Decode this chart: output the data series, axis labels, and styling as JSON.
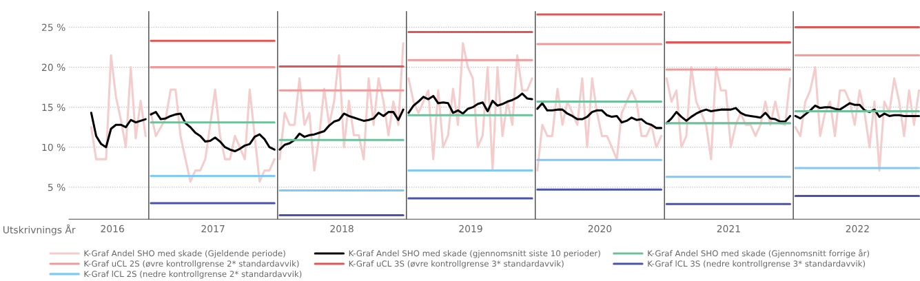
{
  "chart_data": {
    "type": "line",
    "xlabel": "Utskrivnings År",
    "x": [
      "2016-07-22",
      "2016-08-05",
      "2016-08-19",
      "2016-09-02",
      "2016-09-16",
      "2016-09-30",
      "2016-10-14",
      "2016-10-28",
      "2016-11-11",
      "2016-11-25",
      "2016-12-09",
      "2016-12-23",
      "2017-01-01",
      "2017-01-07",
      "2017-01-21",
      "2017-02-04",
      "2017-02-18",
      "2017-03-04",
      "2017-03-18",
      "2017-04-01",
      "2017-04-15",
      "2017-04-29",
      "2017-05-13",
      "2017-05-27",
      "2017-06-10",
      "2017-06-24",
      "2017-07-08",
      "2017-07-22",
      "2017-08-05",
      "2017-08-19",
      "2017-09-02",
      "2017-09-16",
      "2017-09-30",
      "2017-10-14",
      "2017-10-28",
      "2017-11-11",
      "2017-11-25",
      "2017-12-09",
      "2017-12-23",
      "2018-01-01",
      "2018-01-07",
      "2018-01-21",
      "2018-02-04",
      "2018-02-18",
      "2018-03-04",
      "2018-03-18",
      "2018-04-01",
      "2018-04-15",
      "2018-04-29",
      "2018-05-13",
      "2018-05-27",
      "2018-06-10",
      "2018-06-24",
      "2018-07-08",
      "2018-07-22",
      "2018-08-05",
      "2018-08-19",
      "2018-09-02",
      "2018-09-16",
      "2018-09-30",
      "2018-10-14",
      "2018-10-28",
      "2018-11-11",
      "2018-11-25",
      "2018-12-09",
      "2018-12-23",
      "2019-01-01",
      "2019-01-07",
      "2019-01-21",
      "2019-02-04",
      "2019-02-18",
      "2019-03-04",
      "2019-03-18",
      "2019-04-01",
      "2019-04-15",
      "2019-04-29",
      "2019-05-13",
      "2019-05-27",
      "2019-06-10",
      "2019-06-24",
      "2019-07-08",
      "2019-07-22",
      "2019-08-05",
      "2019-08-19",
      "2019-09-02",
      "2019-09-16",
      "2019-09-30",
      "2019-10-14",
      "2019-10-28",
      "2019-11-11",
      "2019-11-25",
      "2019-12-09",
      "2019-12-23",
      "2020-01-01",
      "2020-01-07",
      "2020-01-21",
      "2020-02-04",
      "2020-02-18",
      "2020-03-04",
      "2020-03-18",
      "2020-04-01",
      "2020-04-15",
      "2020-04-29",
      "2020-05-13",
      "2020-05-27",
      "2020-06-10",
      "2020-06-24",
      "2020-07-08",
      "2020-07-22",
      "2020-08-05",
      "2020-08-19",
      "2020-09-02",
      "2020-09-16",
      "2020-09-30",
      "2020-10-14",
      "2020-10-28",
      "2020-11-11",
      "2020-11-25",
      "2020-12-09",
      "2020-12-23",
      "2021-01-01",
      "2021-01-07",
      "2021-01-21",
      "2021-02-04",
      "2021-02-18",
      "2021-03-04",
      "2021-03-18",
      "2021-04-01",
      "2021-04-15",
      "2021-04-29",
      "2021-05-13",
      "2021-05-27",
      "2021-06-10",
      "2021-06-24",
      "2021-07-08",
      "2021-07-22",
      "2021-08-05",
      "2021-08-19",
      "2021-09-02",
      "2021-09-16",
      "2021-09-30",
      "2021-10-14",
      "2021-10-28",
      "2021-11-11",
      "2021-11-25",
      "2021-12-09",
      "2021-12-23",
      "2022-01-01",
      "2022-01-07",
      "2022-01-21",
      "2022-02-04",
      "2022-02-18",
      "2022-03-04",
      "2022-03-18",
      "2022-04-01",
      "2022-04-15",
      "2022-04-29",
      "2022-05-13",
      "2022-05-27",
      "2022-06-10",
      "2022-06-24",
      "2022-07-08",
      "2022-07-22",
      "2022-08-05",
      "2022-08-19",
      "2022-09-02",
      "2022-09-16",
      "2022-09-30",
      "2022-10-14",
      "2022-10-28",
      "2022-11-11",
      "2022-11-25",
      "2022-12-09",
      "2022-12-23"
    ],
    "xlim": [
      "2016-05-20",
      "2022-12-26"
    ],
    "xticks": [
      {
        "value": "2016-09-20",
        "label": "2016"
      },
      {
        "value": "2017-07-02",
        "label": "2017"
      },
      {
        "value": "2018-07-02",
        "label": "2018"
      },
      {
        "value": "2019-07-02",
        "label": "2019"
      },
      {
        "value": "2020-07-02",
        "label": "2020"
      },
      {
        "value": "2021-07-02",
        "label": "2021"
      },
      {
        "value": "2022-07-02",
        "label": "2022"
      }
    ],
    "ylim": [
      1,
      27
    ],
    "yticks": [
      {
        "value": 5,
        "label": "5 %"
      },
      {
        "value": 10,
        "label": "10 %"
      },
      {
        "value": 15,
        "label": "15 %"
      },
      {
        "value": 20,
        "label": "20 %"
      },
      {
        "value": 25,
        "label": "25 %"
      }
    ],
    "grid": "y",
    "legend": "bottom",
    "ref_lines": [
      {
        "axis": "x",
        "value": "2017-01-01",
        "color": "#444444"
      },
      {
        "axis": "x",
        "value": "2018-01-01",
        "color": "#444444"
      },
      {
        "axis": "x",
        "value": "2019-01-01",
        "color": "#444444"
      },
      {
        "axis": "x",
        "value": "2020-01-01",
        "color": "#444444"
      },
      {
        "axis": "x",
        "value": "2021-01-01",
        "color": "#444444"
      },
      {
        "axis": "x",
        "value": "2022-01-01",
        "color": "#444444"
      }
    ],
    "series": [
      {
        "name": "K-Graf Andel SHO med skade (Gjeldende periode)",
        "color": "#f4cccc",
        "values": [
          12.5,
          8.5,
          8.5,
          8.5,
          21.5,
          16.3,
          13.4,
          10.0,
          20.0,
          11.1,
          15.8,
          11.4,
          null,
          14.3,
          11.4,
          12.5,
          13.6,
          17.2,
          17.2,
          11.4,
          8.5,
          5.7,
          7.1,
          7.1,
          8.5,
          12.8,
          17.2,
          11.4,
          8.5,
          8.5,
          11.4,
          10.0,
          8.5,
          17.2,
          11.4,
          5.7,
          7.1,
          7.1,
          8.5,
          null,
          8.5,
          14.3,
          12.8,
          12.8,
          18.6,
          12.8,
          14.3,
          7.1,
          11.4,
          17.3,
          12.8,
          15.7,
          21.5,
          10.0,
          15.8,
          11.5,
          11.5,
          8.5,
          18.6,
          12.8,
          18.6,
          15.7,
          11.5,
          15.7,
          12.8,
          23.0,
          null,
          18.6,
          15.7,
          14.3,
          15.7,
          17.1,
          8.5,
          17.1,
          10.0,
          11.5,
          17.3,
          12.8,
          23.0,
          20.0,
          18.6,
          10.0,
          11.5,
          20.0,
          7.1,
          20.0,
          11.4,
          15.7,
          12.8,
          21.5,
          17.1,
          17.1,
          18.6,
          null,
          7.1,
          12.8,
          11.4,
          11.4,
          17.3,
          12.8,
          15.7,
          14.3,
          12.8,
          18.6,
          10.0,
          18.6,
          14.3,
          11.4,
          11.4,
          10.0,
          8.5,
          14.3,
          15.7,
          17.1,
          15.7,
          11.4,
          11.4,
          12.8,
          10.0,
          11.4,
          null,
          18.6,
          15.7,
          17.1,
          10.0,
          11.4,
          20.0,
          15.7,
          14.3,
          12.8,
          8.5,
          20.0,
          17.1,
          17.1,
          10.0,
          12.8,
          14.3,
          12.8,
          12.8,
          11.4,
          12.8,
          15.7,
          12.8,
          15.7,
          13.0,
          12.8,
          18.6,
          null,
          12.5,
          11.4,
          15.7,
          17.1,
          20.0,
          11.4,
          14.3,
          15.7,
          11.4,
          17.1,
          17.1,
          15.7,
          12.8,
          17.1,
          14.3,
          10.0,
          15.7,
          7.1,
          15.7,
          14.3,
          18.6,
          15.7,
          11.4,
          17.1,
          12.8,
          17.1
        ]
      },
      {
        "name": "K-Graf Andel SHO med skade (gjennomsnitt siste 10 perioder)",
        "color": "#000000",
        "values": [
          14.3,
          11.4,
          10.4,
          10.0,
          12.3,
          12.8,
          12.8,
          12.5,
          13.4,
          13.1,
          13.3,
          13.5,
          null,
          14.1,
          14.4,
          13.5,
          13.6,
          13.9,
          14.1,
          14.2,
          13.0,
          12.5,
          11.8,
          11.4,
          10.7,
          10.8,
          11.2,
          10.7,
          10.0,
          9.7,
          9.5,
          9.8,
          10.2,
          10.4,
          11.3,
          11.6,
          11.0,
          10.0,
          9.7,
          null,
          9.7,
          10.3,
          10.5,
          10.9,
          11.7,
          11.3,
          11.5,
          11.6,
          11.8,
          12.0,
          12.7,
          13.2,
          13.4,
          14.2,
          13.9,
          13.7,
          13.5,
          13.3,
          13.4,
          13.6,
          14.3,
          13.9,
          14.4,
          14.4,
          13.4,
          14.7,
          null,
          14.3,
          15.2,
          15.7,
          16.3,
          16.0,
          16.4,
          15.5,
          15.6,
          15.5,
          14.3,
          14.6,
          14.2,
          14.8,
          15.0,
          15.4,
          15.6,
          14.5,
          15.8,
          15.2,
          15.4,
          15.7,
          15.9,
          16.2,
          16.7,
          16.1,
          16.0,
          null,
          14.8,
          15.5,
          14.6,
          14.6,
          14.7,
          14.7,
          14.2,
          13.9,
          13.5,
          13.5,
          13.8,
          14.4,
          14.6,
          14.6,
          14.0,
          13.8,
          13.9,
          13.1,
          13.3,
          13.7,
          13.4,
          13.5,
          13.0,
          12.8,
          12.4,
          12.4,
          null,
          13.0,
          13.6,
          14.4,
          13.8,
          13.3,
          13.8,
          14.2,
          14.5,
          14.7,
          14.5,
          14.6,
          14.7,
          14.7,
          14.7,
          14.9,
          14.3,
          14.0,
          13.9,
          13.8,
          13.7,
          14.3,
          13.6,
          13.5,
          13.2,
          13.2,
          13.9,
          null,
          13.9,
          13.6,
          14.1,
          14.6,
          15.2,
          14.9,
          15.0,
          15.0,
          14.8,
          14.7,
          15.1,
          15.5,
          15.3,
          15.3,
          14.6,
          14.4,
          14.7,
          13.8,
          14.2,
          13.9,
          14.0,
          14.0,
          13.9,
          13.9,
          13.9,
          13.9
        ]
      },
      {
        "name": "K-Graf Andel SHO med skade (Gjennomsnitt forrige år)",
        "color": "#6cc09a",
        "x": [
          "2017-01-07",
          "2017-12-23",
          "2018-01-01",
          "2018-01-07",
          "2018-12-23",
          "2019-01-01",
          "2019-01-07",
          "2019-12-23",
          "2020-01-01",
          "2020-01-07",
          "2020-12-23",
          "2021-01-01",
          "2021-01-07",
          "2021-12-23",
          "2022-01-01",
          "2022-01-07",
          "2022-12-23"
        ],
        "values": [
          13.1,
          13.1,
          null,
          10.9,
          10.9,
          null,
          14.0,
          14.0,
          null,
          15.7,
          15.7,
          null,
          13.0,
          13.0,
          null,
          14.5,
          14.5
        ]
      },
      {
        "name": "K-Graf uCL 2S (øvre kontrollgrense 2* standardavvik)",
        "color": "#ee9a9a",
        "x": [
          "2017-01-07",
          "2017-12-23",
          "2018-01-01",
          "2018-01-07",
          "2018-12-23",
          "2019-01-01",
          "2019-01-07",
          "2019-12-23",
          "2020-01-01",
          "2020-01-07",
          "2020-12-23",
          "2021-01-01",
          "2021-01-07",
          "2021-12-23",
          "2022-01-01",
          "2022-01-07",
          "2022-12-23"
        ],
        "values": [
          20.0,
          20.0,
          null,
          17.1,
          17.1,
          null,
          20.9,
          20.9,
          null,
          22.9,
          22.9,
          null,
          19.7,
          19.7,
          null,
          21.5,
          21.5
        ]
      },
      {
        "name": "K-Graf uCL 3S (øvre kontrollgrense 3* standardavvik)",
        "color": "#e05555",
        "x": [
          "2017-01-07",
          "2017-12-23",
          "2018-01-01",
          "2018-01-07",
          "2018-12-23",
          "2019-01-01",
          "2019-01-07",
          "2019-12-23",
          "2020-01-01",
          "2020-01-07",
          "2020-12-23",
          "2021-01-01",
          "2021-01-07",
          "2021-12-23",
          "2022-01-01",
          "2022-01-07",
          "2022-12-23"
        ],
        "values": [
          23.3,
          23.3,
          null,
          20.1,
          20.1,
          null,
          24.4,
          24.4,
          null,
          26.6,
          26.6,
          null,
          23.1,
          23.1,
          null,
          25.0,
          25.0
        ]
      },
      {
        "name": "K-Graf lCL 3S (nedre kontrollgrense 3* standardavvik)",
        "color": "#4a52b0",
        "x": [
          "2017-01-07",
          "2017-12-23",
          "2018-01-01",
          "2018-01-07",
          "2018-12-23",
          "2019-01-01",
          "2019-01-07",
          "2019-12-23",
          "2020-01-01",
          "2020-01-07",
          "2020-12-23",
          "2021-01-01",
          "2021-01-07",
          "2021-12-23",
          "2022-01-01",
          "2022-01-07",
          "2022-12-23"
        ],
        "values": [
          3.0,
          3.0,
          null,
          1.5,
          1.5,
          null,
          3.6,
          3.6,
          null,
          4.7,
          4.7,
          null,
          2.9,
          2.9,
          null,
          3.9,
          3.9
        ]
      },
      {
        "name": "K-Graf lCL 2S (nedre kontrollgrense 2* standardavvik)",
        "color": "#80c8f8",
        "x": [
          "2017-01-07",
          "2017-12-23",
          "2018-01-01",
          "2018-01-07",
          "2018-12-23",
          "2019-01-01",
          "2019-01-07",
          "2019-12-23",
          "2020-01-01",
          "2020-01-07",
          "2020-12-23",
          "2021-01-01",
          "2021-01-07",
          "2021-12-23",
          "2022-01-01",
          "2022-01-07",
          "2022-12-23"
        ],
        "values": [
          6.4,
          6.4,
          null,
          4.6,
          4.6,
          null,
          7.1,
          7.1,
          null,
          8.4,
          8.4,
          null,
          6.3,
          6.3,
          null,
          7.4,
          7.4
        ]
      }
    ]
  }
}
